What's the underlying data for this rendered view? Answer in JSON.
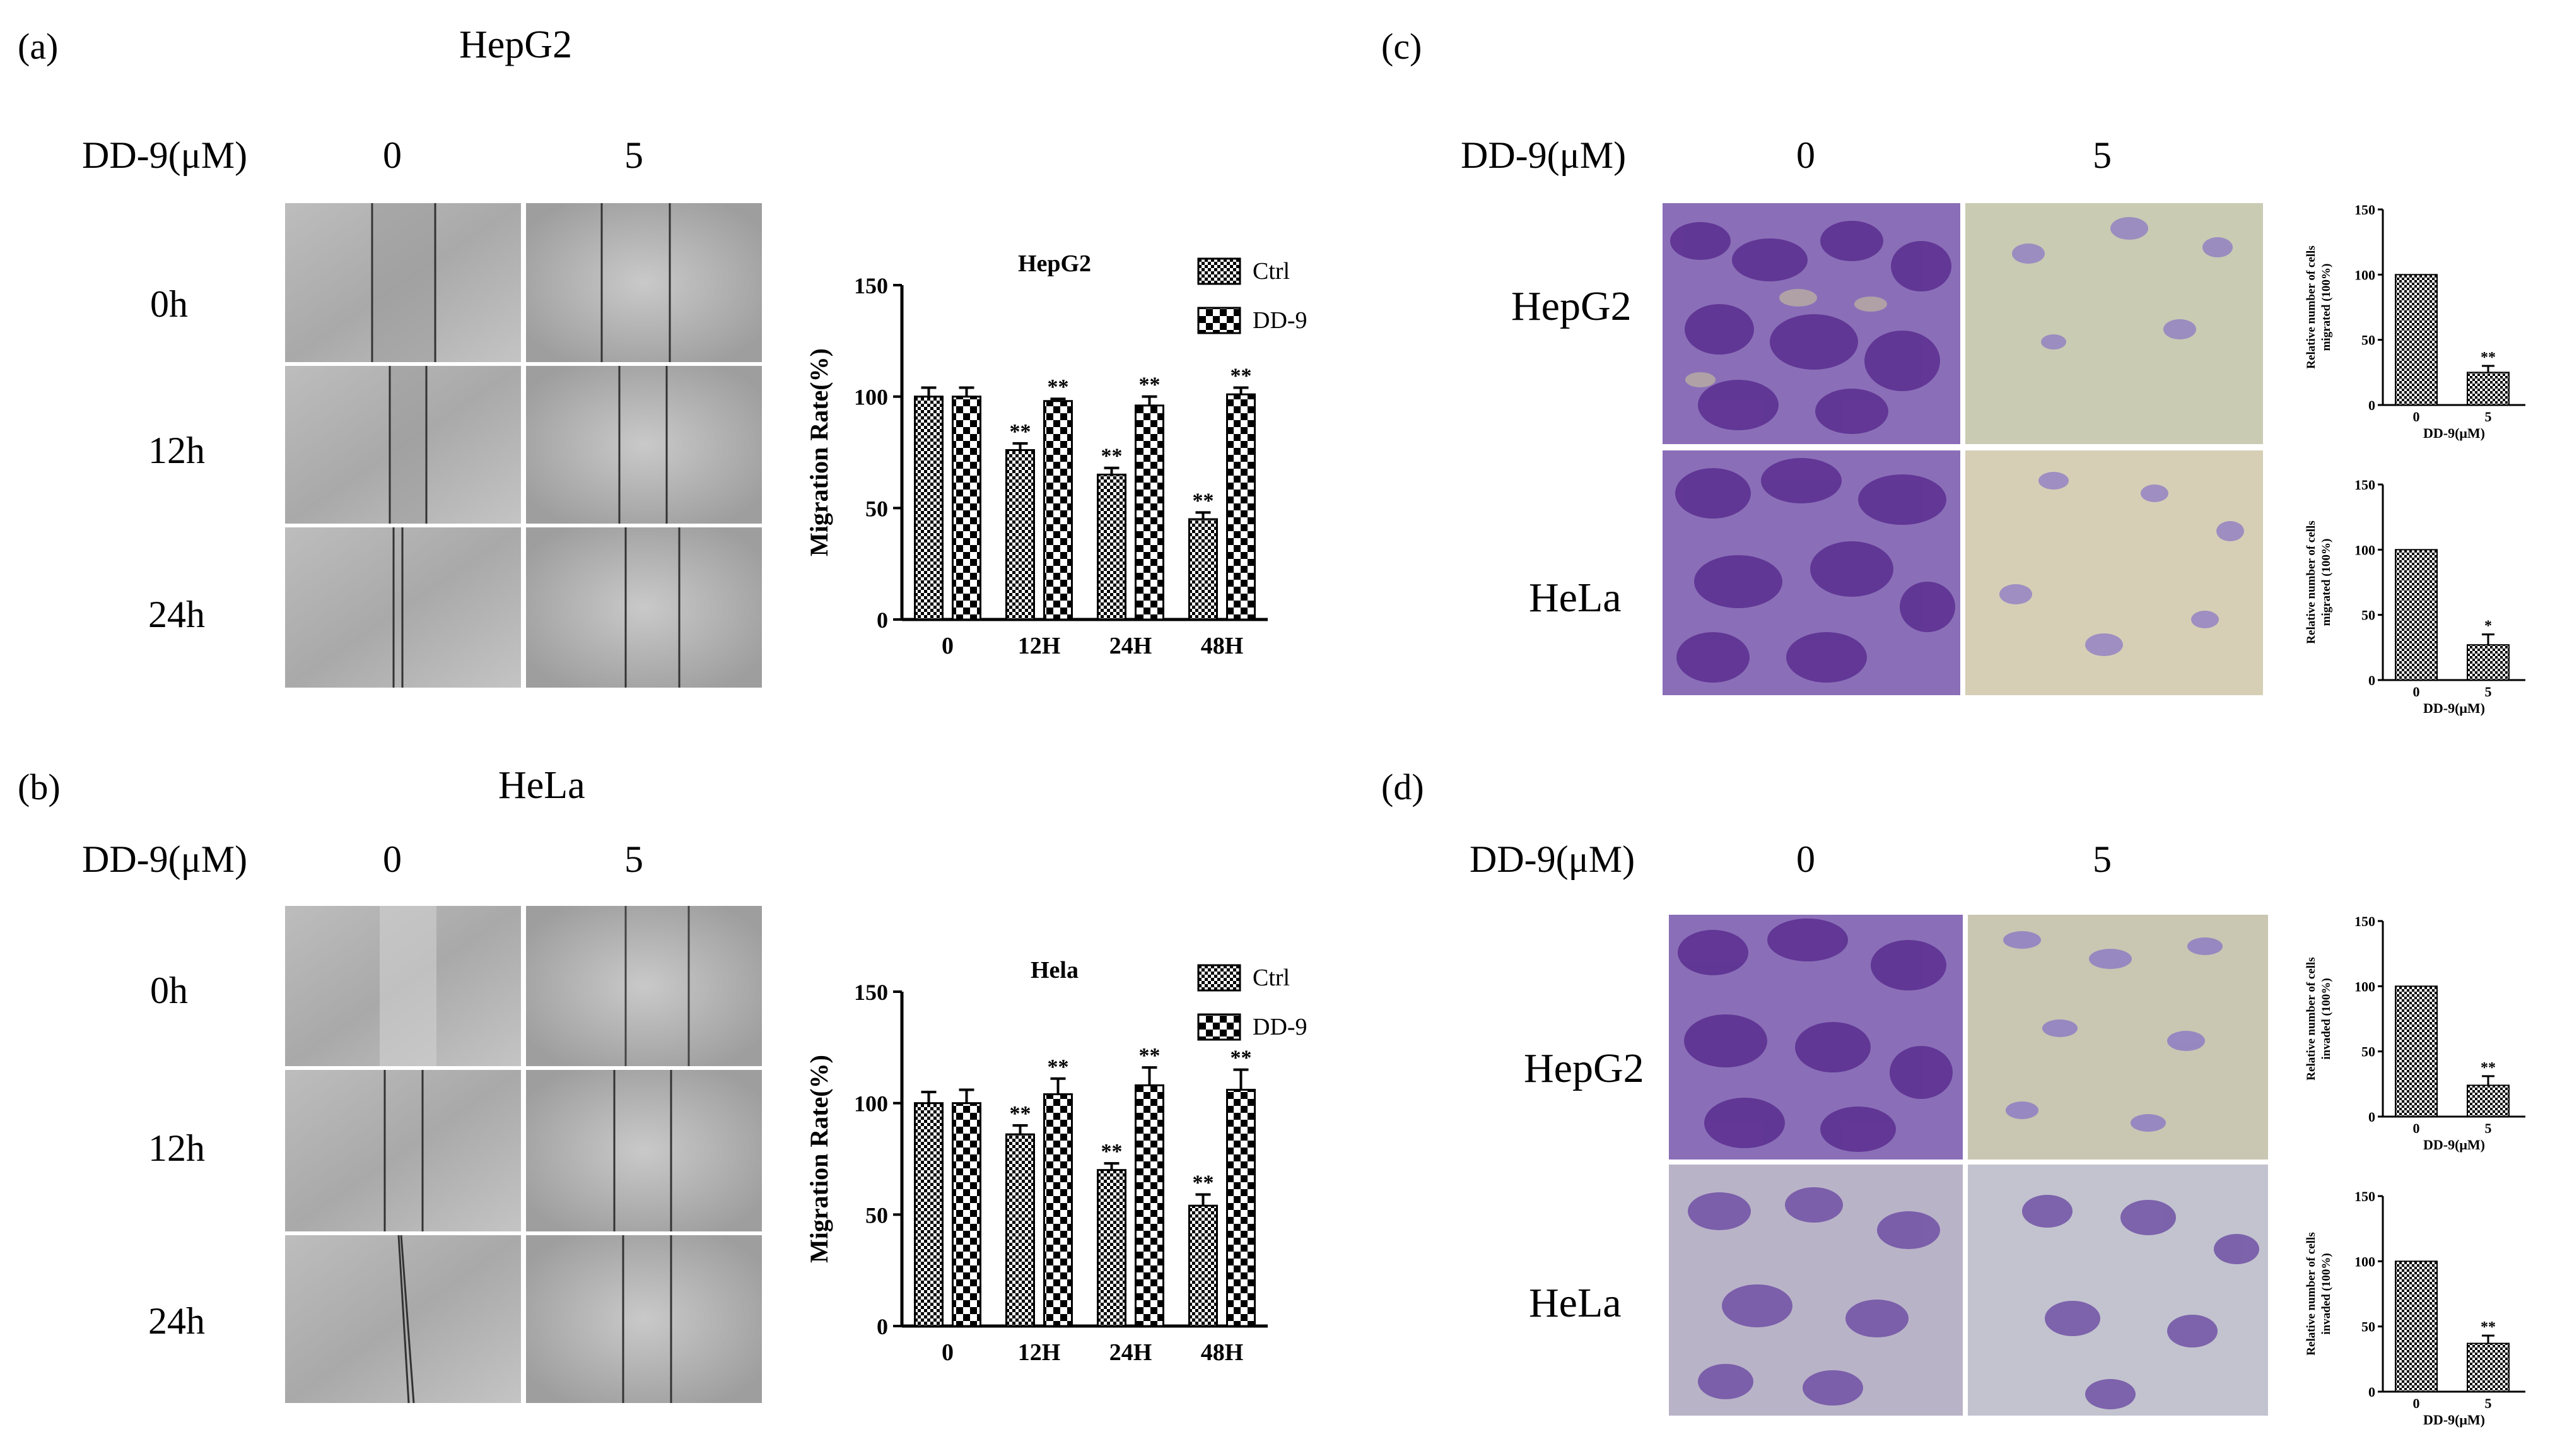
{
  "panels": {
    "a": {
      "label": "(a)",
      "cell": "HepG2",
      "dd9_label": "DD-9(μM)",
      "cols": [
        "0",
        "5"
      ],
      "rows": [
        "0h",
        "12h",
        "24h"
      ]
    },
    "b": {
      "label": "(b)",
      "cell": "HeLa",
      "dd9_label": "DD-9(μM)",
      "cols": [
        "0",
        "5"
      ],
      "rows": [
        "0h",
        "12h",
        "24h"
      ]
    },
    "c": {
      "label": "(c)",
      "dd9_label": "DD-9(μM)",
      "cols": [
        "0",
        "5"
      ],
      "rows": [
        "HepG2",
        "HeLa"
      ]
    },
    "d": {
      "label": "(d)",
      "dd9_label": "DD-9(μM)",
      "cols": [
        "0",
        "5"
      ],
      "rows": [
        "HepG2",
        "HeLa"
      ]
    }
  },
  "chart_data": [
    {
      "id": "migration_hepg2",
      "type": "bar",
      "title": "HepG2",
      "ylabel": "Migration Rate(%)",
      "xlabel": "",
      "ylim": [
        0,
        150
      ],
      "yticks": [
        "0",
        "50",
        "100",
        "150"
      ],
      "categories": [
        "0",
        "12H",
        "24H",
        "48H"
      ],
      "series": [
        {
          "name": "Ctrl",
          "values": [
            100,
            76,
            65,
            45
          ],
          "errors": [
            4,
            3,
            3,
            3
          ],
          "sig": [
            "",
            "**",
            "**",
            "**"
          ]
        },
        {
          "name": "DD-9",
          "values": [
            100,
            98,
            96,
            101
          ],
          "errors": [
            4,
            1,
            4,
            3
          ],
          "sig": [
            "",
            "**",
            "**",
            "**"
          ]
        }
      ],
      "legend": "top-right"
    },
    {
      "id": "migration_hela",
      "type": "bar",
      "title": "Hela",
      "ylabel": "Migration Rate(%)",
      "xlabel": "",
      "ylim": [
        0,
        150
      ],
      "yticks": [
        "0",
        "50",
        "100",
        "150"
      ],
      "categories": [
        "0",
        "12H",
        "24H",
        "48H"
      ],
      "series": [
        {
          "name": "Ctrl",
          "values": [
            100,
            86,
            70,
            54
          ],
          "errors": [
            5,
            4,
            3,
            5
          ],
          "sig": [
            "",
            "**",
            "**",
            "**"
          ]
        },
        {
          "name": "DD-9",
          "values": [
            100,
            104,
            108,
            106
          ],
          "errors": [
            6,
            7,
            8,
            9
          ],
          "sig": [
            "",
            "**",
            "**",
            "**"
          ]
        }
      ],
      "legend": "top-right"
    },
    {
      "id": "c_hepg2",
      "type": "bar",
      "ylabel_lines": [
        "Relative number of cells",
        "migrated (100%)"
      ],
      "xlabel": "DD-9(μM)",
      "ylim": [
        0,
        150
      ],
      "yticks": [
        "0",
        "50",
        "100",
        "150"
      ],
      "categories": [
        "0",
        "5"
      ],
      "values": [
        100,
        25
      ],
      "errors": [
        0,
        5
      ],
      "sig": [
        "",
        "**"
      ]
    },
    {
      "id": "c_hela",
      "type": "bar",
      "ylabel_lines": [
        "Relative number of cells",
        "migrated (100%)"
      ],
      "xlabel": "DD-9(μM)",
      "ylim": [
        0,
        150
      ],
      "yticks": [
        "0",
        "50",
        "100",
        "150"
      ],
      "categories": [
        "0",
        "5"
      ],
      "values": [
        100,
        27
      ],
      "errors": [
        0,
        8
      ],
      "sig": [
        "",
        "*"
      ]
    },
    {
      "id": "d_hepg2",
      "type": "bar",
      "ylabel_lines": [
        "Relative number of cells",
        "invaded (100%)"
      ],
      "xlabel": "DD-9(μM)",
      "ylim": [
        0,
        150
      ],
      "yticks": [
        "0",
        "50",
        "100",
        "150"
      ],
      "categories": [
        "0",
        "5"
      ],
      "values": [
        100,
        24
      ],
      "errors": [
        0,
        7
      ],
      "sig": [
        "",
        "**"
      ]
    },
    {
      "id": "d_hela",
      "type": "bar",
      "ylabel_lines": [
        "Relative number of cells",
        "invaded (100%)"
      ],
      "xlabel": "DD-9(μM)",
      "ylim": [
        0,
        150
      ],
      "yticks": [
        "0",
        "50",
        "100",
        "150"
      ],
      "categories": [
        "0",
        "5"
      ],
      "values": [
        100,
        37
      ],
      "errors": [
        0,
        6
      ],
      "sig": [
        "",
        "**"
      ]
    }
  ]
}
